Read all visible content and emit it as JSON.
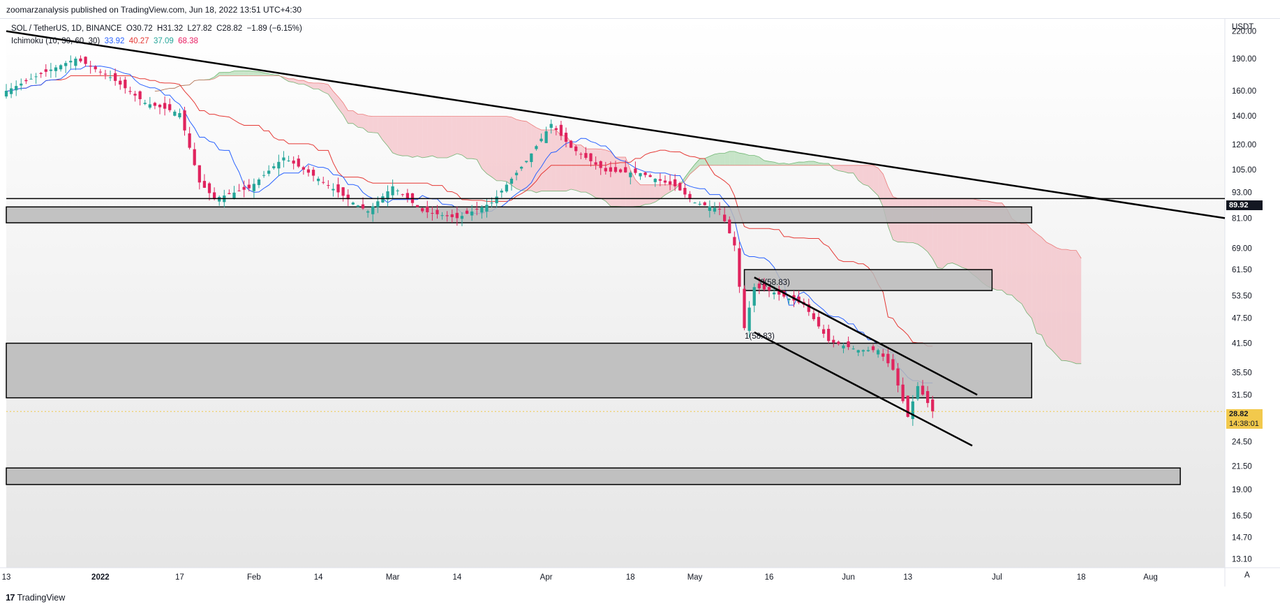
{
  "header": {
    "publisher": "zoomarzanalysis published on TradingView.com, Jun 18, 2022 13:51 UTC+4:30"
  },
  "legend": {
    "symbol": "SOL / TetherUS, 1D, BINANCE",
    "open": "O30.72",
    "high": "H31.32",
    "low": "L27.82",
    "close": "C28.82",
    "change": "−1.89 (−6.15%)",
    "indicator": "Ichimoku (10, 30, 60, 30)",
    "ichimoku_values": [
      "33.92",
      "40.27",
      "37.09",
      "68.38"
    ]
  },
  "footer": {
    "logo": "17",
    "brand": "TradingView",
    "auto": "A"
  },
  "price_axis": {
    "unit": "USDT",
    "last_price": "28.82",
    "countdown": "14:38:01",
    "hline_label": "89.92"
  },
  "fib_labels": [
    "0(58.83)",
    "1(58.83)"
  ],
  "colors": {
    "bull": "#26a69a",
    "bear": "#e0245e",
    "conversion": "#2962ff",
    "base": "#e53935",
    "cloud_bull": "#a5d6a7",
    "cloud_bear": "#f4b4bc",
    "zone": "#b8b8b8",
    "line": "#000000"
  },
  "chart_data": {
    "type": "candlestick",
    "title": "SOL / TetherUS, 1D, BINANCE",
    "scale": "log",
    "ylim": [
      12.5,
      235
    ],
    "y_ticks": [
      220,
      190,
      160,
      140,
      120,
      105,
      93,
      81,
      69,
      61.5,
      53.5,
      47.5,
      41.5,
      35.5,
      31.5,
      28.82,
      24.5,
      21.5,
      19,
      16.5,
      14.7,
      13.1
    ],
    "x_ticks": [
      "13",
      "2022",
      "17",
      "Feb",
      "14",
      "Mar",
      "14",
      "Apr",
      "18",
      "May",
      "16",
      "Jun",
      "13",
      "Jul",
      "18",
      "Aug"
    ],
    "xlim": [
      "2021-12-13",
      "2022-08-16"
    ],
    "last_candle": {
      "open": 30.72,
      "high": 31.32,
      "low": 27.82,
      "close": 28.82
    },
    "price_path": [
      [
        "2021-12-13",
        160
      ],
      [
        "2021-12-20",
        175
      ],
      [
        "2021-12-27",
        190
      ],
      [
        "2022-01-03",
        172
      ],
      [
        "2022-01-10",
        150
      ],
      [
        "2022-01-17",
        142
      ],
      [
        "2022-01-21",
        98
      ],
      [
        "2022-01-24",
        90
      ],
      [
        "2022-01-31",
        95
      ],
      [
        "2022-02-07",
        112
      ],
      [
        "2022-02-14",
        100
      ],
      [
        "2022-02-21",
        88
      ],
      [
        "2022-02-24",
        84
      ],
      [
        "2022-03-01",
        96
      ],
      [
        "2022-03-07",
        84
      ],
      [
        "2022-03-14",
        81
      ],
      [
        "2022-03-21",
        88
      ],
      [
        "2022-03-28",
        110
      ],
      [
        "2022-04-02",
        134
      ],
      [
        "2022-04-06",
        118
      ],
      [
        "2022-04-13",
        104
      ],
      [
        "2022-04-20",
        103
      ],
      [
        "2022-04-27",
        96
      ],
      [
        "2022-05-01",
        88
      ],
      [
        "2022-05-06",
        85
      ],
      [
        "2022-05-09",
        70
      ],
      [
        "2022-05-11",
        45
      ],
      [
        "2022-05-13",
        56
      ],
      [
        "2022-05-16",
        55
      ],
      [
        "2022-05-23",
        51
      ],
      [
        "2022-05-28",
        42
      ],
      [
        "2022-06-03",
        40
      ],
      [
        "2022-06-07",
        40
      ],
      [
        "2022-06-10",
        36
      ],
      [
        "2022-06-13",
        28
      ],
      [
        "2022-06-15",
        33
      ],
      [
        "2022-06-18",
        28.82
      ]
    ],
    "ichimoku": {
      "conversion_last": 33.92,
      "base_last": 40.27,
      "span_a_last": 37.09,
      "span_b_last": 68.38
    },
    "horizontal_line": 89.92,
    "zones": [
      {
        "from": 79,
        "to": 86,
        "start": "2021-12-13",
        "end": "2022-07-08"
      },
      {
        "from": 55,
        "to": 61.5,
        "start": "2022-05-11",
        "end": "2022-06-30"
      },
      {
        "from": 31,
        "to": 41.5,
        "start": "2021-12-13",
        "end": "2022-07-08"
      },
      {
        "from": 19.5,
        "to": 21.3,
        "start": "2021-12-13",
        "end": "2022-08-07"
      }
    ],
    "trendlines": [
      {
        "from": [
          "2021-12-13",
          220
        ],
        "to": [
          "2022-08-16",
          81
        ]
      },
      {
        "from": [
          "2022-05-13",
          59
        ],
        "to": [
          "2022-06-27",
          31.5
        ]
      },
      {
        "from": [
          "2022-05-13",
          44
        ],
        "to": [
          "2022-06-26",
          24
        ]
      }
    ]
  }
}
